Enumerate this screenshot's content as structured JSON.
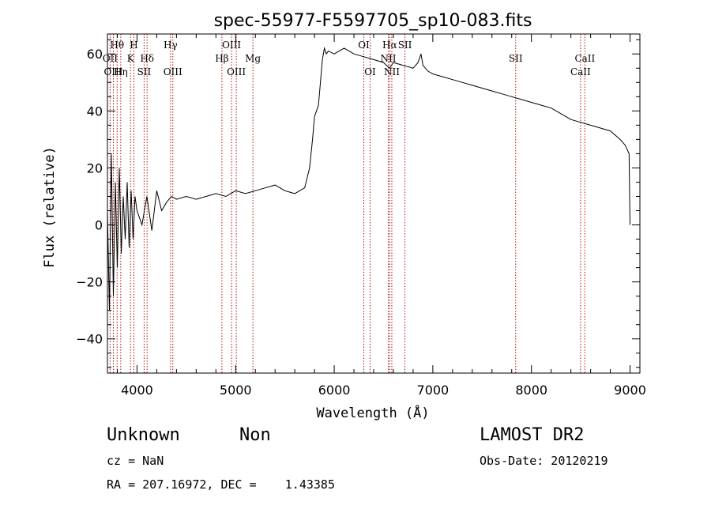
{
  "chart_data": {
    "type": "line",
    "title": "spec-55977-F5597705_sp10-083.fits",
    "xlabel": "Wavelength (Å)",
    "ylabel": "Flux (relative)",
    "xlim": [
      3700,
      9100
    ],
    "ylim": [
      -52,
      67
    ],
    "x_ticks": [
      4000,
      5000,
      6000,
      7000,
      8000,
      9000
    ],
    "y_ticks": [
      -40,
      -20,
      0,
      20,
      40,
      60
    ],
    "grid": false,
    "series": [
      {
        "color": "#000000",
        "x": [
          3700,
          3720,
          3740,
          3760,
          3780,
          3800,
          3820,
          3840,
          3860,
          3880,
          3900,
          3920,
          3940,
          3960,
          3980,
          4000,
          4050,
          4100,
          4150,
          4200,
          4250,
          4300,
          4350,
          4400,
          4500,
          4600,
          4700,
          4800,
          4900,
          5000,
          5100,
          5200,
          5300,
          5400,
          5500,
          5600,
          5700,
          5750,
          5780,
          5800,
          5820,
          5840,
          5860,
          5880,
          5900,
          5920,
          5940,
          6000,
          6100,
          6200,
          6300,
          6400,
          6500,
          6560,
          6600,
          6700,
          6800,
          6850,
          6880,
          6900,
          6950,
          7000,
          7100,
          7200,
          7300,
          7400,
          7500,
          7600,
          7700,
          7800,
          7900,
          8000,
          8100,
          8200,
          8300,
          8400,
          8500,
          8600,
          8700,
          8800,
          8900,
          8950,
          8990,
          9000
        ],
        "y": [
          5,
          -30,
          25,
          -25,
          15,
          -15,
          20,
          -10,
          10,
          -5,
          15,
          -8,
          12,
          -5,
          10,
          5,
          0,
          10,
          -2,
          12,
          5,
          8,
          10,
          9,
          10,
          9,
          10,
          11,
          10,
          12,
          11,
          12,
          13,
          14,
          12,
          11,
          13,
          20,
          30,
          38,
          40,
          42,
          50,
          58,
          62,
          60,
          61,
          60,
          62,
          60,
          59,
          58,
          57,
          55,
          57,
          56,
          55,
          57,
          60,
          56,
          54,
          53,
          52,
          51,
          50,
          49,
          48,
          47,
          46,
          45,
          44,
          43,
          42,
          41,
          39,
          37,
          36,
          35,
          34,
          33,
          30,
          28,
          25,
          0
        ]
      }
    ],
    "spectral_lines": [
      {
        "label": "Hθ",
        "wl": 3798,
        "row": 0
      },
      {
        "label": "OII",
        "wl": 3727,
        "row": 1
      },
      {
        "label": "OIII",
        "wl": 3760,
        "row": 2
      },
      {
        "label": "Hη",
        "wl": 3835,
        "row": 2
      },
      {
        "label": "H",
        "wl": 3968,
        "row": 0
      },
      {
        "label": "K",
        "wl": 3934,
        "row": 1
      },
      {
        "label": "Hδ",
        "wl": 4102,
        "row": 1
      },
      {
        "label": "SII",
        "wl": 4072,
        "row": 2
      },
      {
        "label": "Hγ",
        "wl": 4340,
        "row": 0
      },
      {
        "label": "OIII",
        "wl": 4363,
        "row": 2
      },
      {
        "label": "OIII",
        "wl": 4959,
        "row": 0
      },
      {
        "label": "Hβ",
        "wl": 4861,
        "row": 1
      },
      {
        "label": "OIII",
        "wl": 5007,
        "row": 2
      },
      {
        "label": "Mg",
        "wl": 5175,
        "row": 1
      },
      {
        "label": "OI",
        "wl": 6300,
        "row": 0
      },
      {
        "label": "OI",
        "wl": 6364,
        "row": 2
      },
      {
        "label": "Hα",
        "wl": 6563,
        "row": 0
      },
      {
        "label": "NII",
        "wl": 6548,
        "row": 1
      },
      {
        "label": "NII",
        "wl": 6584,
        "row": 2
      },
      {
        "label": "SII",
        "wl": 6717,
        "row": 0
      },
      {
        "label": "SII",
        "wl": 7840,
        "row": 1
      },
      {
        "label": "CaII",
        "wl": 8542,
        "row": 1
      },
      {
        "label": "CaII",
        "wl": 8498,
        "row": 2
      }
    ]
  },
  "info": {
    "class": "Unknown",
    "subclass": "Non",
    "survey": "LAMOST DR2",
    "cz": "cz = NaN",
    "obs_date": "Obs-Date: 20120219",
    "radec": "RA = 207.16972, DEC =    1.43385"
  }
}
